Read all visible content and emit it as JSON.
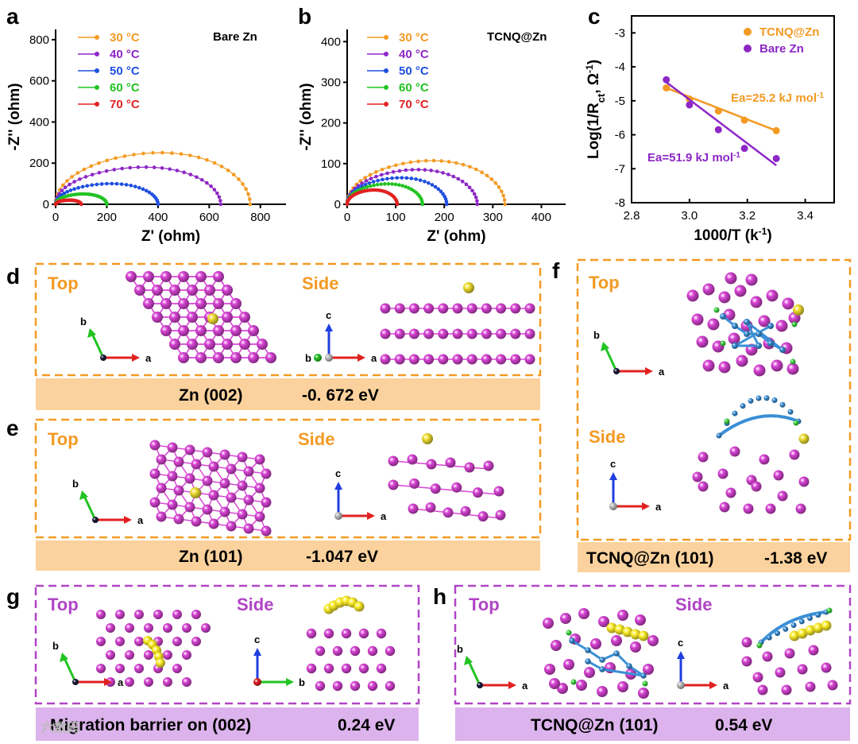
{
  "colors": {
    "orange": "#f39a23",
    "purple": "#8d27c5",
    "blue": "#1f4fe0",
    "green": "#22c322",
    "red": "#e12121",
    "zn": "#d944d6",
    "au": "#f2e032",
    "tcnq": "#3a8fd6",
    "cl": "#3ad23a",
    "mig": "#ffef2a",
    "ebar_orange": "#fbd29d",
    "ebar_purple": "#dcb3ec"
  },
  "chart_data": [
    {
      "type": "scatter",
      "panel": "a",
      "title": "Bare Zn",
      "xlabel": "Z' (ohm)",
      "ylabel": "-Z'' (ohm)",
      "xlim": [
        0,
        900
      ],
      "ylim": [
        0,
        850
      ],
      "xticks": [
        0,
        200,
        400,
        600,
        800
      ],
      "yticks": [
        0,
        200,
        400,
        600,
        800
      ],
      "series": [
        {
          "name": "30 °C",
          "color": "#f39a23",
          "diameter": 760,
          "height": 250
        },
        {
          "name": "40 °C",
          "color": "#8d27c5",
          "diameter": 645,
          "height": 180
        },
        {
          "name": "50 °C",
          "color": "#1f4fe0",
          "diameter": 400,
          "height": 100
        },
        {
          "name": "60 °C",
          "color": "#22c322",
          "diameter": 200,
          "height": 50
        },
        {
          "name": "70 °C",
          "color": "#e12121",
          "diameter": 100,
          "height": 20
        }
      ]
    },
    {
      "type": "scatter",
      "panel": "b",
      "title": "TCNQ@Zn",
      "xlabel": "Z' (ohm)",
      "ylabel": "-Z'' (ohm)",
      "xlim": [
        0,
        450
      ],
      "ylim": [
        0,
        430
      ],
      "xticks": [
        0,
        100,
        200,
        300,
        400
      ],
      "yticks": [
        0,
        100,
        200,
        300,
        400
      ],
      "series": [
        {
          "name": "30 °C",
          "color": "#f39a23",
          "diameter": 325,
          "height": 107
        },
        {
          "name": "40 °C",
          "color": "#8d27c5",
          "diameter": 268,
          "height": 85
        },
        {
          "name": "50 °C",
          "color": "#1f4fe0",
          "diameter": 205,
          "height": 65
        },
        {
          "name": "60 °C",
          "color": "#22c322",
          "diameter": 155,
          "height": 50
        },
        {
          "name": "70 °C",
          "color": "#e12121",
          "diameter": 103,
          "height": 35
        }
      ]
    },
    {
      "type": "scatter",
      "panel": "c",
      "xlabel": "1000/T (k-1)",
      "ylabel": "Log(1/Rct, Ω-1)",
      "xlim": [
        2.8,
        3.5
      ],
      "ylim": [
        -8,
        -2.5
      ],
      "xticks": [
        2.8,
        3.0,
        3.2,
        3.4
      ],
      "yticks": [
        -8,
        -7,
        -6,
        -5,
        -4,
        -3
      ],
      "series": [
        {
          "name": "TCNQ@Zn",
          "color": "#f39a23",
          "x": [
            2.92,
            3.0,
            3.1,
            3.19,
            3.3
          ],
          "y": [
            -4.62,
            -4.95,
            -5.3,
            -5.57,
            -5.88
          ],
          "fit": [
            [
              2.92,
              -4.62
            ],
            [
              3.3,
              -5.88
            ]
          ],
          "annotation": "Ea=25.2 kJ mol",
          "ann_sup": "-1"
        },
        {
          "name": "Bare Zn",
          "color": "#8d27c5",
          "x": [
            2.92,
            3.0,
            3.1,
            3.19,
            3.3
          ],
          "y": [
            -4.38,
            -5.12,
            -5.85,
            -6.4,
            -6.7
          ],
          "fit": [
            [
              2.92,
              -4.45
            ],
            [
              3.3,
              -6.9
            ]
          ],
          "annotation": "Ea=51.9 kJ mol",
          "ann_sup": "-1"
        }
      ]
    }
  ],
  "panels": {
    "a": "a",
    "b": "b",
    "c": "c",
    "d": "d",
    "e": "e",
    "f": "f",
    "g": "g",
    "h": "h",
    "top": "Top",
    "side": "Side",
    "axis_a": "a",
    "axis_b": "b",
    "axis_c": "c",
    "d_bar_label": "Zn (002)",
    "d_bar_value": "-0. 672 eV",
    "e_bar_label": "Zn (101)",
    "e_bar_value": "-1.047 eV",
    "f_bar_label": "TCNQ@Zn (101)",
    "f_bar_value": "-1.38 eV",
    "g_bar_label": "Migration barrier on (002)",
    "g_bar_value": "0.24 eV",
    "h_bar_label": "TCNQ@Zn (101)",
    "h_bar_value": "0.54 eV",
    "watermark": "六数码"
  }
}
